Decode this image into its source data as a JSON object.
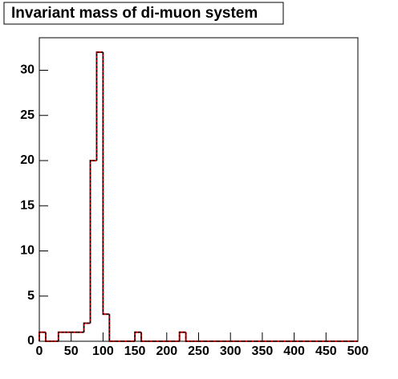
{
  "chart_data": {
    "type": "histogram",
    "title": "Invariant mass of di-muon system",
    "bins": [
      0,
      10,
      20,
      30,
      40,
      50,
      60,
      70,
      80,
      90,
      100,
      110,
      120,
      130,
      140,
      150,
      160,
      170,
      180,
      190,
      200,
      210,
      220,
      230,
      240,
      250,
      260,
      270,
      280,
      290,
      300,
      310,
      320,
      330,
      340,
      350,
      360,
      370,
      380,
      390,
      400,
      410,
      420,
      430,
      440,
      450,
      460,
      470,
      480,
      490,
      500
    ],
    "values": [
      1,
      0,
      0,
      1,
      1,
      1,
      1,
      2,
      20,
      32,
      3,
      0,
      0,
      0,
      0,
      1,
      0,
      0,
      0,
      0,
      0,
      0,
      1,
      0,
      0,
      0,
      0,
      0,
      0,
      0,
      0,
      0,
      0,
      0,
      0,
      0,
      0,
      0,
      0,
      0,
      0,
      0,
      0,
      0,
      0,
      0,
      0,
      0,
      0,
      0
    ],
    "color": "#cc0000",
    "dash_color": "#000000",
    "xlim": [
      0,
      500
    ],
    "xticks": [
      0,
      50,
      100,
      150,
      200,
      250,
      300,
      350,
      400,
      450,
      500
    ],
    "ylim": [
      0,
      33.6
    ],
    "yticks": [
      0,
      5,
      10,
      15,
      20,
      25,
      30
    ]
  }
}
